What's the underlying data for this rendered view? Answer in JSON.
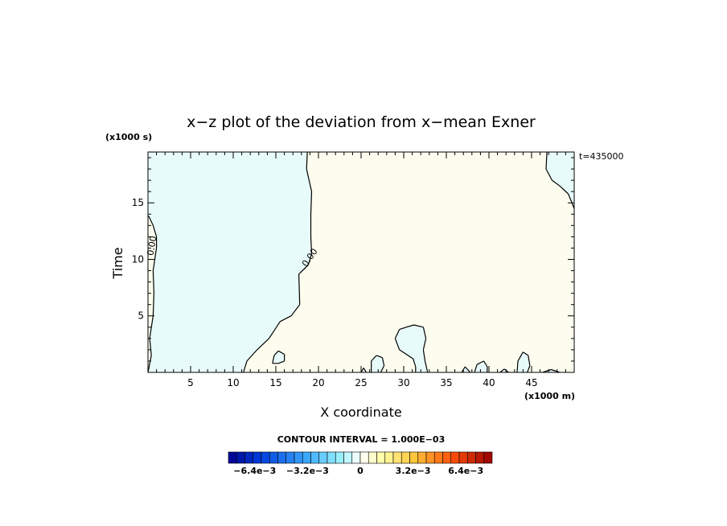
{
  "chart_data": {
    "type": "heatmap",
    "title": "x−z plot of the deviation from x−mean Exner",
    "xlabel": "X coordinate",
    "ylabel": "Time",
    "x_unit_label": "(x1000 m)",
    "y_unit_label": "(x1000 s)",
    "time_label": "t=435000",
    "xlim": [
      0,
      50
    ],
    "ylim": [
      0,
      19.5
    ],
    "x_ticks": [
      5,
      10,
      15,
      20,
      25,
      30,
      35,
      40,
      45
    ],
    "y_ticks": [
      5,
      10,
      15
    ],
    "contour_interval_label": "CONTOUR INTERVAL = 1.000E−03",
    "contour_label": "0.00",
    "colorbar": {
      "vmin": -0.008,
      "vmax": 0.008,
      "n_colors": 32,
      "tick_labels": [
        "−6.4e−3",
        "−3.2e−3",
        "0",
        "3.2e−3",
        "6.4e−3"
      ],
      "tick_values": [
        -0.0064,
        -0.0032,
        0,
        0.0032,
        0.0064
      ]
    },
    "regions": [
      {
        "sign": "negative",
        "color": "#e8fbfb",
        "boundary": [
          [
            0,
            0
          ],
          [
            0.4,
            1.5
          ],
          [
            0.2,
            3
          ],
          [
            0.6,
            5
          ],
          [
            0.7,
            7
          ],
          [
            0.6,
            9
          ],
          [
            0.9,
            10.5
          ],
          [
            1,
            11
          ],
          [
            1,
            12
          ],
          [
            0.6,
            13
          ],
          [
            0.1,
            13.8
          ],
          [
            0,
            13.8
          ],
          [
            0,
            19.5
          ],
          [
            18.7,
            19.5
          ],
          [
            18.6,
            18
          ],
          [
            19.2,
            16
          ],
          [
            19.1,
            14
          ],
          [
            19.1,
            12
          ],
          [
            19.2,
            10.5
          ],
          [
            18.8,
            9.5
          ],
          [
            17.7,
            8.7
          ],
          [
            17.8,
            6
          ],
          [
            16.8,
            5
          ],
          [
            15.5,
            4.5
          ],
          [
            14.2,
            3
          ],
          [
            12.8,
            2
          ],
          [
            11.6,
            1
          ],
          [
            11.2,
            0
          ]
        ]
      },
      {
        "sign": "negative",
        "color": "#e8fbfb",
        "boundary": [
          [
            31.4,
            0
          ],
          [
            31.4,
            0.5
          ],
          [
            31.1,
            1.2
          ],
          [
            29.5,
            2
          ],
          [
            29,
            3
          ],
          [
            29.5,
            3.8
          ],
          [
            30.3,
            4
          ],
          [
            31.2,
            4.2
          ],
          [
            32.3,
            4
          ],
          [
            32.6,
            3
          ],
          [
            32.3,
            2
          ],
          [
            32.5,
            1
          ],
          [
            32.8,
            0
          ]
        ]
      },
      {
        "sign": "negative",
        "color": "#e8fbfb",
        "boundary": [
          [
            14.6,
            0.8
          ],
          [
            14.8,
            1.5
          ],
          [
            15.3,
            1.9
          ],
          [
            16,
            1.6
          ],
          [
            16,
            1
          ],
          [
            15.3,
            0.8
          ]
        ]
      },
      {
        "sign": "negative",
        "color": "#e8fbfb",
        "boundary": [
          [
            26.2,
            0
          ],
          [
            26.2,
            1
          ],
          [
            26.8,
            1.5
          ],
          [
            27.5,
            1.3
          ],
          [
            27.7,
            0.6
          ],
          [
            27.3,
            0
          ]
        ]
      },
      {
        "sign": "negative",
        "color": "#e8fbfb",
        "boundary": [
          [
            25,
            0
          ],
          [
            25.3,
            0.4
          ],
          [
            25.6,
            0
          ]
        ]
      },
      {
        "sign": "negative",
        "color": "#e8fbfb",
        "boundary": [
          [
            43.3,
            0
          ],
          [
            43.4,
            1
          ],
          [
            44,
            1.8
          ],
          [
            44.6,
            1.5
          ],
          [
            44.8,
            0.6
          ],
          [
            44.5,
            0
          ]
        ]
      },
      {
        "sign": "negative",
        "color": "#e8fbfb",
        "boundary": [
          [
            36.8,
            0
          ],
          [
            37.2,
            0.5
          ],
          [
            37.8,
            0
          ]
        ]
      },
      {
        "sign": "negative",
        "color": "#e8fbfb",
        "boundary": [
          [
            38.3,
            0
          ],
          [
            38.6,
            0.7
          ],
          [
            39.4,
            1
          ],
          [
            39.8,
            0.5
          ],
          [
            39.8,
            0
          ]
        ]
      },
      {
        "sign": "negative",
        "color": "#e8fbfb",
        "boundary": [
          [
            41.3,
            0
          ],
          [
            41.8,
            0.3
          ],
          [
            42.3,
            0
          ]
        ]
      },
      {
        "sign": "negative",
        "color": "#e8fbfb",
        "boundary": [
          [
            46.3,
            0
          ],
          [
            47.3,
            0.25
          ],
          [
            48.3,
            0
          ]
        ]
      },
      {
        "sign": "negative",
        "color": "#e8fbfb",
        "boundary": [
          [
            50,
            14.5
          ],
          [
            49.3,
            15.8
          ],
          [
            48.3,
            16.5
          ],
          [
            47.4,
            17
          ],
          [
            46.7,
            18
          ],
          [
            46.8,
            19.5
          ],
          [
            50,
            19.5
          ]
        ]
      }
    ],
    "background_color": "#fdfdef"
  }
}
